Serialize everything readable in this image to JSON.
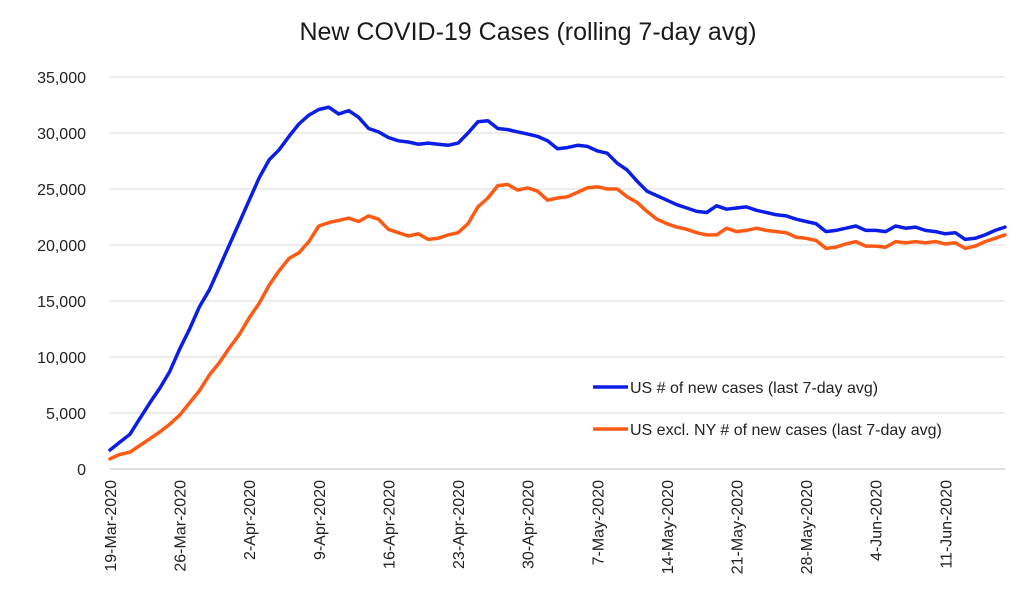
{
  "chart_data": {
    "type": "line",
    "title": "New COVID-19 Cases (rolling 7-day avg)",
    "xlabel": "",
    "ylabel": "",
    "ylim": [
      0,
      35000
    ],
    "yticks": [
      0,
      5000,
      10000,
      15000,
      20000,
      25000,
      30000,
      35000
    ],
    "ytick_labels": [
      "0",
      "5,000",
      "10,000",
      "15,000",
      "20,000",
      "25,000",
      "30,000",
      "35,000"
    ],
    "x_start": "2020-03-19",
    "x_end": "2020-06-17",
    "xtick_labels": [
      "19-Mar-2020",
      "26-Mar-2020",
      "2-Apr-2020",
      "9-Apr-2020",
      "16-Apr-2020",
      "23-Apr-2020",
      "30-Apr-2020",
      "7-May-2020",
      "14-May-2020",
      "21-May-2020",
      "28-May-2020",
      "4-Jun-2020",
      "11-Jun-2020"
    ],
    "grid": "horizontal",
    "legend_position": "lower-right",
    "series": [
      {
        "name": "US # of new cases (last 7-day avg)",
        "color": "#0a1ee6",
        "values": [
          1700,
          2400,
          3100,
          4500,
          5900,
          7200,
          8700,
          10700,
          12500,
          14500,
          16000,
          18000,
          20000,
          22000,
          24000,
          26000,
          27600,
          28500,
          29700,
          30800,
          31600,
          32100,
          32300,
          31700,
          32000,
          31400,
          30400,
          30100,
          29600,
          29300,
          29200,
          29000,
          29100,
          29000,
          28900,
          29100,
          30000,
          31000,
          31100,
          30400,
          30300,
          30100,
          29900,
          29700,
          29300,
          28600,
          28700,
          28900,
          28800,
          28400,
          28200,
          27300,
          26700,
          25700,
          24800,
          24400,
          24000,
          23600,
          23300,
          23000,
          22900,
          23500,
          23200,
          23300,
          23400,
          23100,
          22900,
          22700,
          22600,
          22300,
          22100,
          21900,
          21200,
          21300,
          21500,
          21700,
          21300,
          21300,
          21200,
          21700,
          21500,
          21600,
          21300,
          21200,
          21000,
          21100,
          20500,
          20600,
          20900,
          21300,
          21600
        ]
      },
      {
        "name": "US excl. NY # of new cases (last 7-day avg)",
        "color": "#ff5a14",
        "values": [
          900,
          1300,
          1500,
          2100,
          2700,
          3300,
          4000,
          4800,
          5900,
          7000,
          8400,
          9500,
          10800,
          12000,
          13500,
          14800,
          16400,
          17700,
          18800,
          19300,
          20300,
          21700,
          22000,
          22200,
          22400,
          22100,
          22600,
          22300,
          21400,
          21100,
          20800,
          21000,
          20500,
          20600,
          20900,
          21100,
          21900,
          23400,
          24200,
          25300,
          25400,
          24900,
          25100,
          24800,
          24000,
          24200,
          24300,
          24700,
          25100,
          25200,
          25000,
          25000,
          24300,
          23800,
          23000,
          22300,
          21900,
          21600,
          21400,
          21100,
          20900,
          20900,
          21500,
          21200,
          21300,
          21500,
          21300,
          21200,
          21100,
          20700,
          20600,
          20400,
          19700,
          19800,
          20100,
          20300,
          19900,
          19900,
          19800,
          20300,
          20200,
          20300,
          20200,
          20300,
          20100,
          20200,
          19700,
          19900,
          20300,
          20600,
          20900
        ]
      }
    ]
  }
}
